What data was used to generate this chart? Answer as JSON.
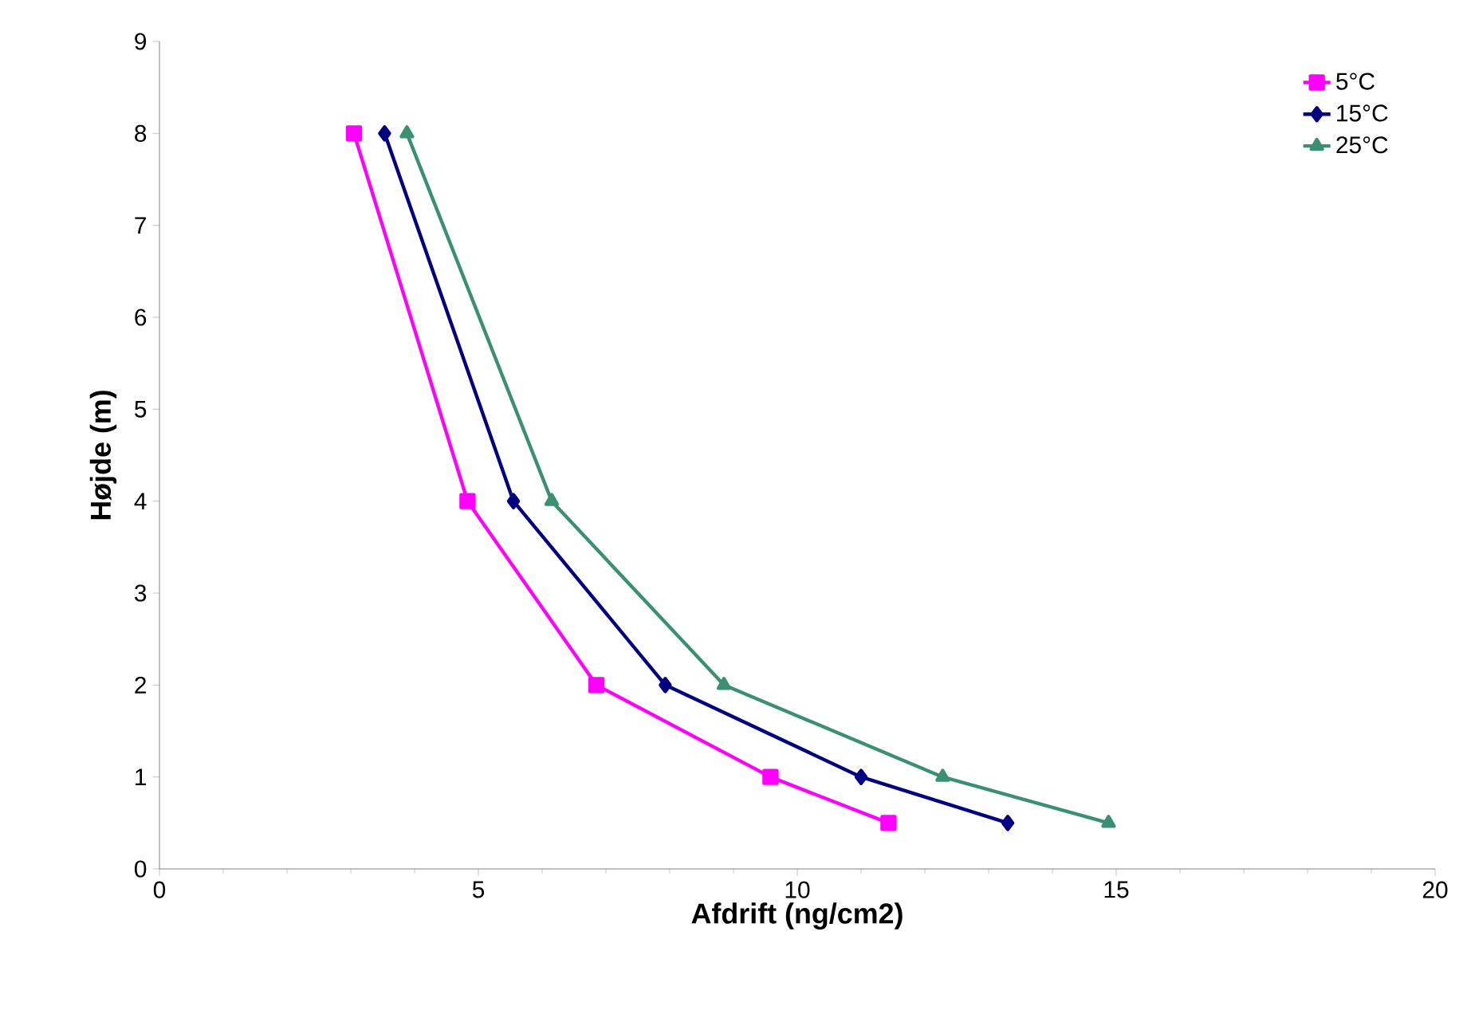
{
  "chart_data": {
    "type": "line",
    "xlabel": "Afdrift (ng/cm2)",
    "ylabel": "Højde (m)",
    "xlim": [
      0,
      20
    ],
    "xticks": [
      0,
      5,
      10,
      15,
      20
    ],
    "ylim": [
      0,
      9
    ],
    "yticks": [
      0,
      1,
      2,
      3,
      4,
      5,
      6,
      7,
      8,
      9
    ],
    "grid": false,
    "legend": "top right",
    "line_style": "solid",
    "series": [
      {
        "name": "5°C",
        "color": "#ff00ff",
        "marker": "square",
        "x": [
          3.05,
          4.83,
          6.85,
          9.58,
          11.43
        ],
        "values": [
          8,
          4,
          2,
          1,
          0.5
        ]
      },
      {
        "name": "15°C",
        "color": "#000080",
        "marker": "diamond",
        "x": [
          3.53,
          5.55,
          7.93,
          11.0,
          13.3
        ],
        "values": [
          8,
          4,
          2,
          1,
          0.5
        ]
      },
      {
        "name": "25°C",
        "color": "#3a9070",
        "marker": "triangle",
        "x": [
          3.88,
          6.15,
          8.85,
          12.28,
          14.88
        ],
        "values": [
          8,
          4,
          2,
          1,
          0.5
        ]
      }
    ]
  }
}
